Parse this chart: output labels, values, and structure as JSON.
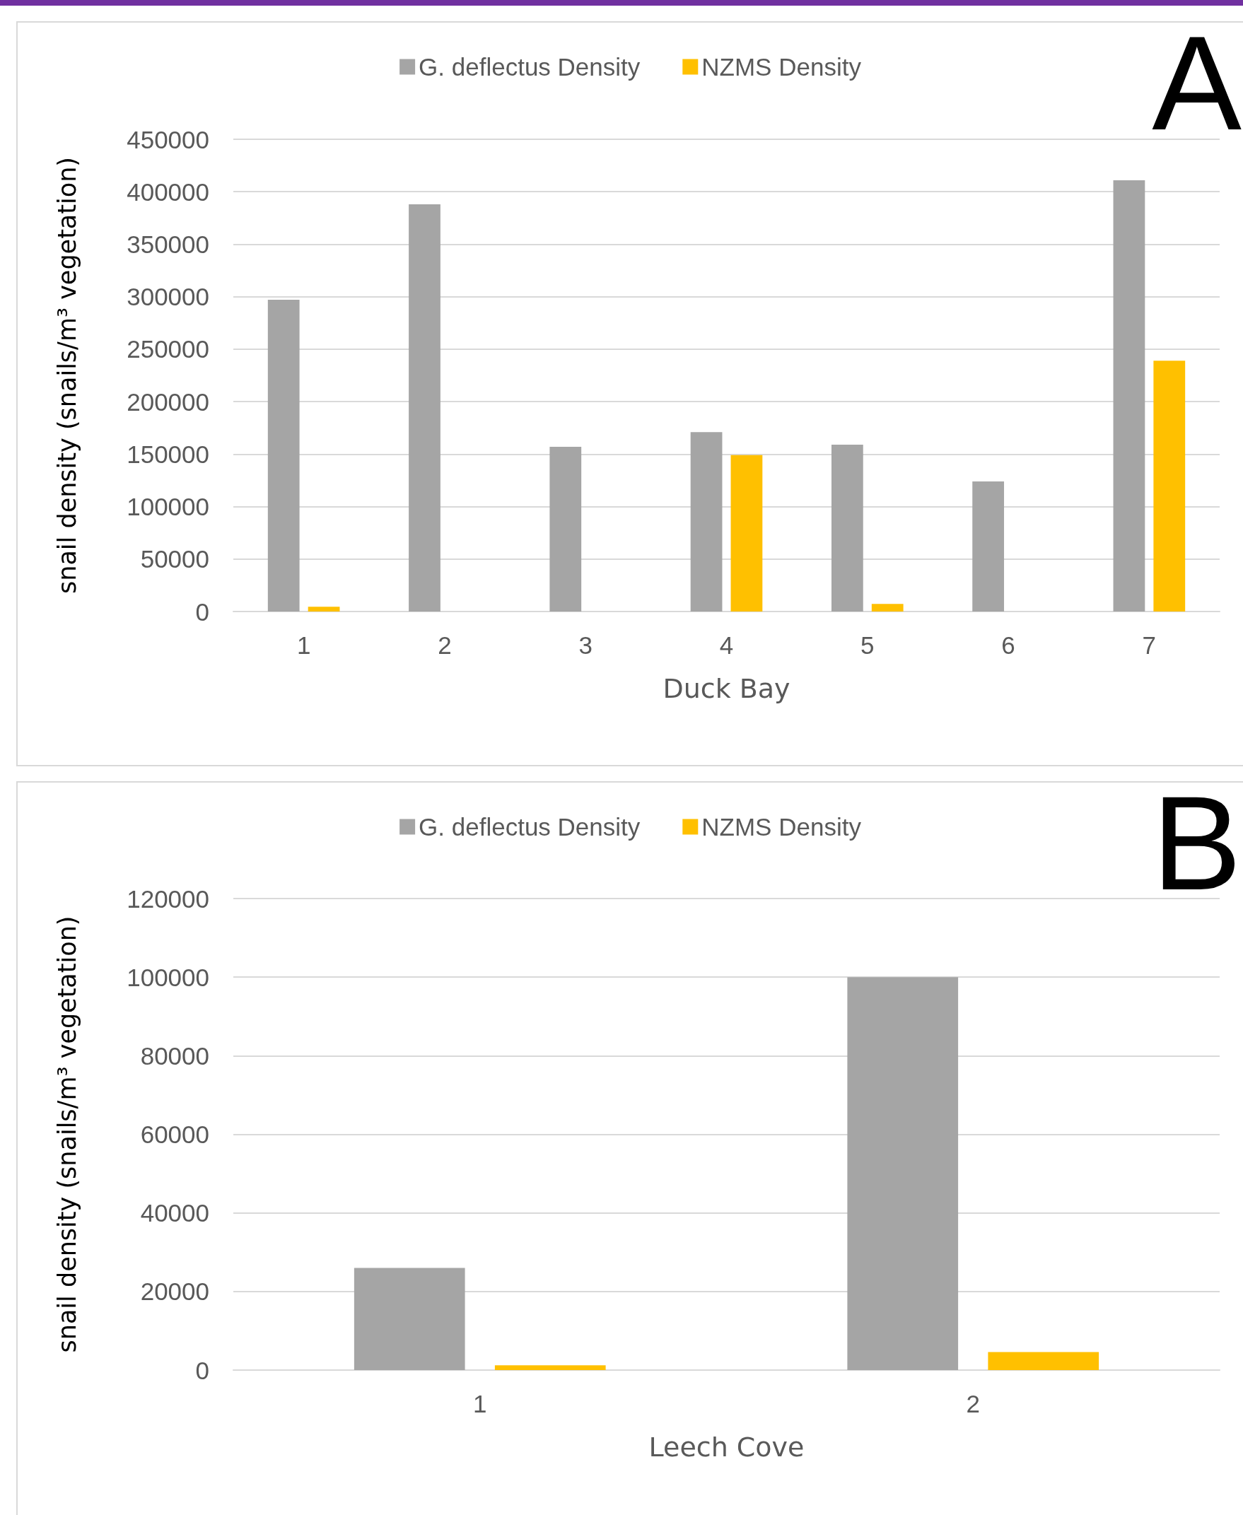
{
  "chart_data": [
    {
      "type": "bar",
      "xlabel": "Duck Bay",
      "ylabel": "snail density (snails/m³ vegetation)",
      "categories": [
        "1",
        "2",
        "3",
        "4",
        "5",
        "6",
        "7"
      ],
      "series": [
        {
          "name": "G. deflectus Density",
          "color": "#a5a5a5",
          "values": [
            297000,
            388000,
            157000,
            171000,
            159000,
            124000,
            411000
          ]
        },
        {
          "name": "NZMS Density",
          "color": "#ffc000",
          "values": [
            4600,
            0,
            0,
            149000,
            7300,
            0,
            239000
          ]
        }
      ],
      "ylim": [
        0,
        450000
      ],
      "yticks": [
        0,
        50000,
        100000,
        150000,
        200000,
        250000,
        300000,
        350000,
        400000,
        450000
      ],
      "grid": "y",
      "legend": "top",
      "annotations": [
        "A"
      ]
    },
    {
      "type": "bar",
      "xlabel": "Leech Cove",
      "ylabel": "snail density (snails/m³ vegetation)",
      "categories": [
        "1",
        "2"
      ],
      "series": [
        {
          "name": "G. deflectus Density",
          "color": "#a5a5a5",
          "values": [
            26000,
            100000
          ]
        },
        {
          "name": "NZMS Density",
          "color": "#ffc000",
          "values": [
            1200,
            4600
          ]
        }
      ],
      "ylim": [
        0,
        120000
      ],
      "yticks": [
        0,
        20000,
        40000,
        60000,
        80000,
        100000,
        120000
      ],
      "grid": "y",
      "legend": "top",
      "annotations": [
        "B"
      ]
    }
  ]
}
